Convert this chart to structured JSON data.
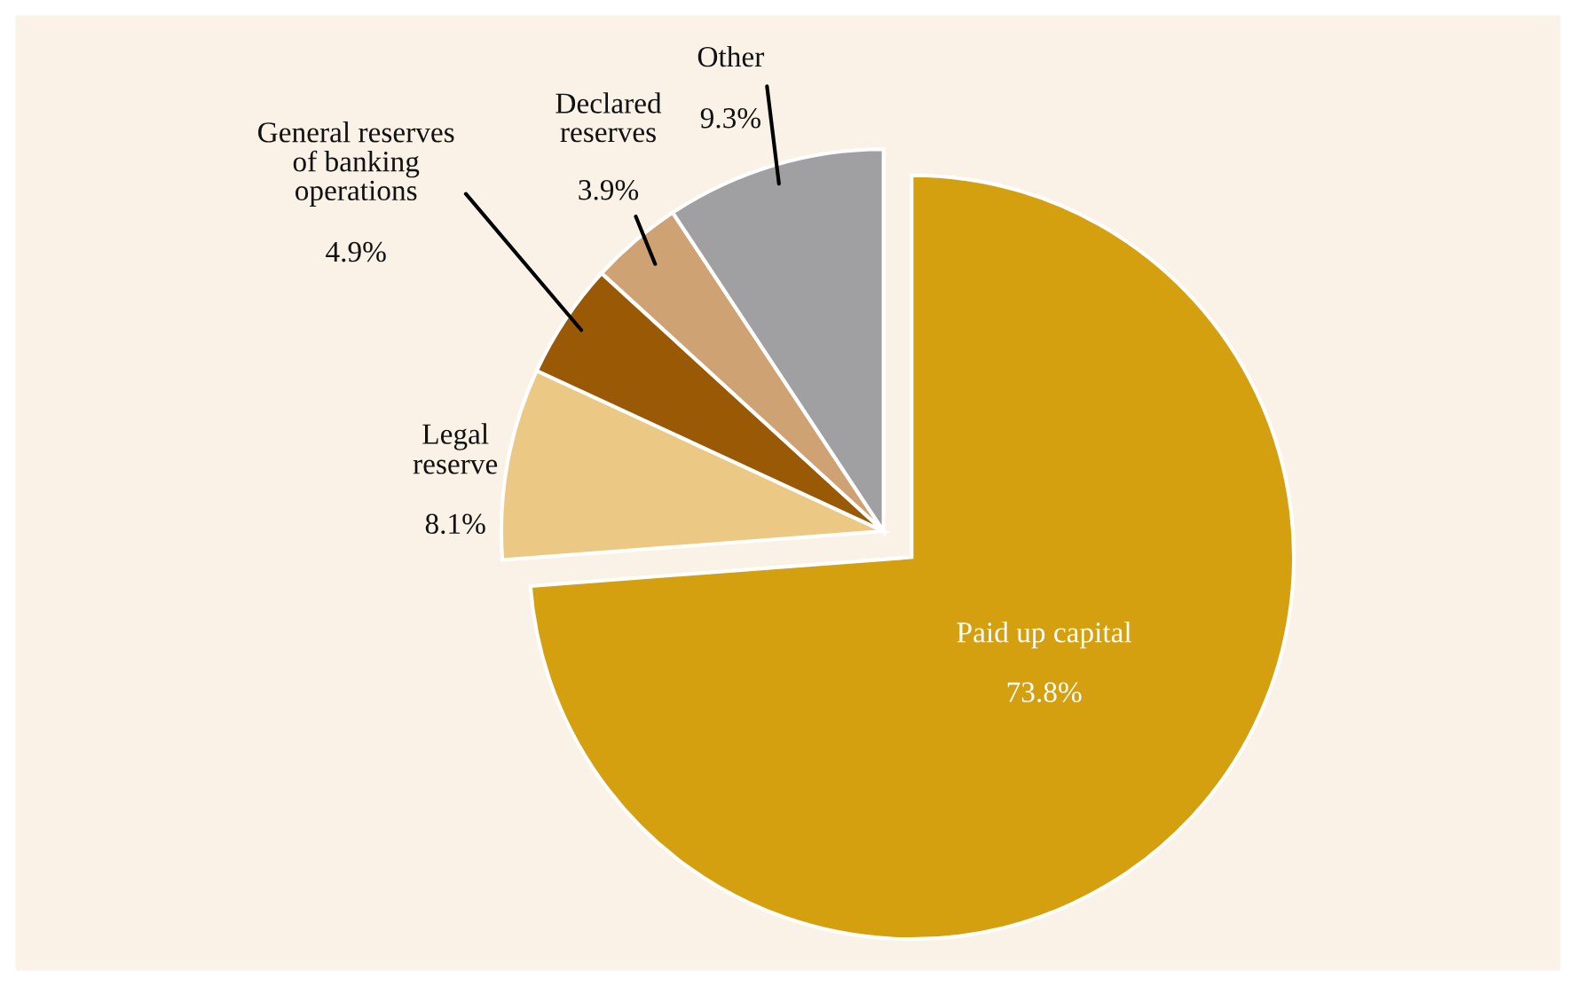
{
  "chart_data": {
    "type": "pie",
    "categories": [
      "Paid up capital",
      "Legal\nreserve",
      "General reserves\nof banking\noperations",
      "Declared\nreserves",
      "Other"
    ],
    "values": [
      73.8,
      8.1,
      4.9,
      3.9,
      9.3
    ],
    "value_labels": [
      "73.8%",
      "8.1%",
      "4.9%",
      "3.9%",
      "9.3%"
    ],
    "colors": [
      "#d4a010",
      "#ebc985",
      "#9a5a05",
      "#cfa273",
      "#a0a0a2"
    ],
    "legend": false
  }
}
